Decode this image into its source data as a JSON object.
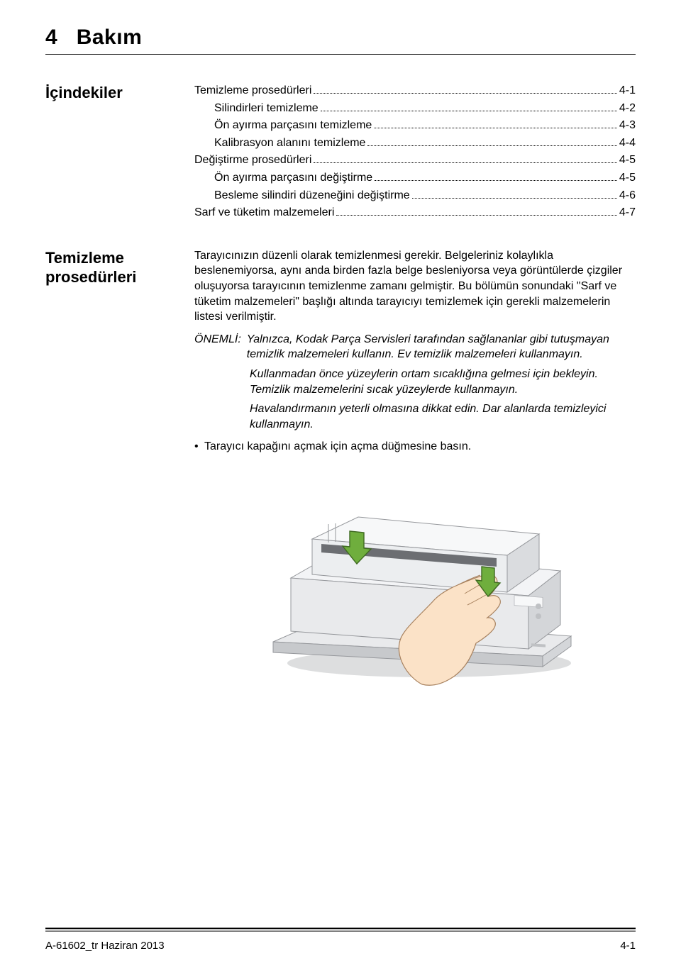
{
  "chapter": {
    "number": "4",
    "title": "Bakım"
  },
  "toc": {
    "heading": "İçindekiler",
    "items": [
      {
        "label": "Temizleme prosedürleri",
        "page": "4-1",
        "indent": false
      },
      {
        "label": "Silindirleri temizleme",
        "page": "4-2",
        "indent": true
      },
      {
        "label": "Ön ayırma parçasını temizleme",
        "page": "4-3",
        "indent": true
      },
      {
        "label": "Kalibrasyon alanını temizleme",
        "page": "4-4",
        "indent": true
      },
      {
        "label": "Değiştirme prosedürleri",
        "page": "4-5",
        "indent": false
      },
      {
        "label": "Ön ayırma parçasını değiştirme",
        "page": "4-5",
        "indent": true
      },
      {
        "label": "Besleme silindiri düzeneğini değiştirme",
        "page": "4-6",
        "indent": true
      },
      {
        "label": "Sarf ve tüketim malzemeleri",
        "page": "4-7",
        "indent": false
      }
    ]
  },
  "section": {
    "heading": "Temizleme prosedürleri",
    "para1": "Tarayıcınızın düzenli olarak temizlenmesi gerekir. Belgeleriniz kolaylıkla beslenemiyorsa, aynı anda birden fazla belge besleniyorsa veya görüntülerde çizgiler oluşuyorsa tarayıcının temizlenme zamanı gelmiştir. Bu bölümün sonundaki \"Sarf ve tüketim malzemeleri\" başlığı altında tarayıcıyı temizlemek için gerekli malzemelerin listesi verilmiştir.",
    "important_label": "ÖNEMLİ:",
    "important_items": [
      "Yalnızca, Kodak Parça Servisleri tarafından sağlananlar gibi tutuşmayan temizlik malzemeleri kullanın. Ev temizlik malzemeleri kullanmayın.",
      "Kullanmadan önce yüzeylerin ortam sıcaklığına gelmesi için bekleyin. Temizlik malzemelerini sıcak yüzeylerde kullanmayın.",
      "Havalandırmanın yeterli olmasına dikkat edin. Dar alanlarda temizleyici kullanmayın."
    ],
    "bullet": "Tarayıcı kapağını açmak için açma düğmesine basın."
  },
  "footer": {
    "left": "A-61602_tr  Haziran 2013",
    "right": "4-1"
  },
  "colors": {
    "arrow_fill": "#6fae3d",
    "arrow_stroke": "#3f6a22",
    "scanner_body": "#e9eaec",
    "scanner_shadow": "#c7c9cc",
    "scanner_dark": "#96989c",
    "skin": "#fbe2c7",
    "skin_line": "#a8825f"
  }
}
